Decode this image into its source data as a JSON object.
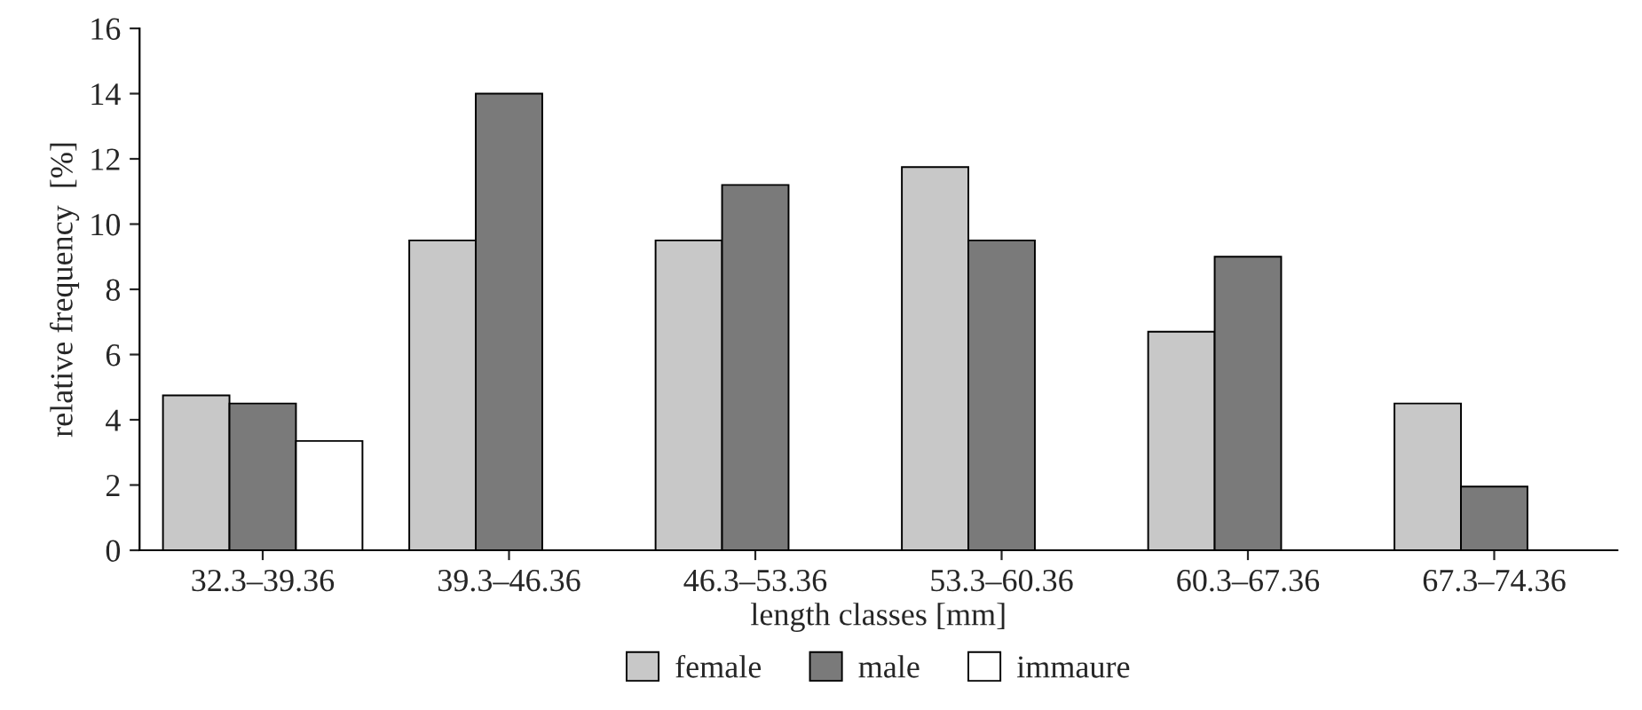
{
  "chart_data": {
    "type": "bar",
    "xlabel": "length classes [mm]",
    "ylabel": "relative frequency  [%]",
    "categories": [
      "32.3–39.36",
      "39.3–46.36",
      "46.3–53.36",
      "53.3–60.36",
      "60.3–67.36",
      "67.3–74.36"
    ],
    "series": [
      {
        "name": "female",
        "color": "#c8c8c8",
        "values": [
          4.75,
          9.5,
          9.5,
          11.75,
          6.7,
          4.5
        ]
      },
      {
        "name": "male",
        "color": "#7a7a7a",
        "values": [
          4.5,
          14,
          11.2,
          9.5,
          9.0,
          1.95
        ]
      },
      {
        "name": "immaure",
        "color": "#ffffff",
        "values": [
          3.35,
          null,
          null,
          null,
          null,
          null
        ]
      }
    ],
    "ylim": [
      0,
      16
    ],
    "yticks": [
      0,
      2,
      4,
      6,
      8,
      10,
      12,
      14,
      16
    ],
    "grid": false,
    "legend": "bottom"
  }
}
